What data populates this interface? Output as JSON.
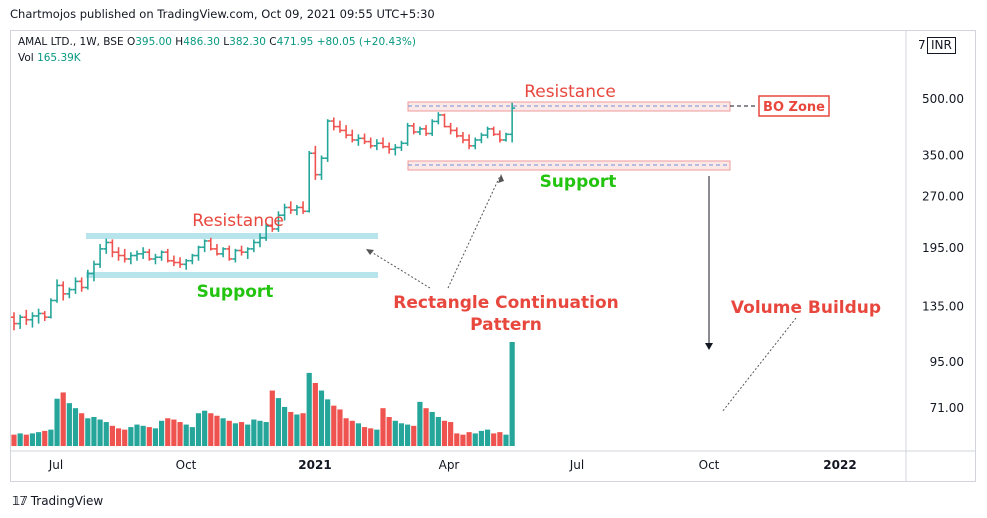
{
  "header": {
    "publisher": "Chartmojos published on TradingView.com, Oct 09, 2021 09:55 UTC+5:30",
    "symbol": "AMAL LTD., 1W, BSE",
    "ohlc": {
      "o_label": "O",
      "o": "395.00",
      "h_label": "H",
      "h": "486.30",
      "l_label": "L",
      "l": "382.30",
      "c_label": "C",
      "c": "471.95",
      "change": "+80.05 (+20.43%)"
    },
    "volume_label": "Vol",
    "volume_value": "165.39K",
    "currency": "INR",
    "top_tick": "7"
  },
  "footer": {
    "brand": "TradingView"
  },
  "colors": {
    "up": "#26a69a",
    "down": "#ef5350",
    "annotation": "#e8473e",
    "support": "#22c40f",
    "band": "#b8e4ec"
  },
  "chart_data": {
    "type": "candlestick",
    "scale": "log",
    "y_ticks": [
      "500.00",
      "350.00",
      "270.00",
      "195.00",
      "135.00",
      "95.00",
      "71.00"
    ],
    "x_ticks": [
      "Jul",
      "Oct",
      "2021",
      "Apr",
      "Jul",
      "Oct",
      "2022"
    ],
    "last_volume": "165.39K",
    "annotations": {
      "resistance_1": "Resistance",
      "support_1": "Support",
      "resistance_2": "Resistance",
      "support_2": "Support",
      "pattern": "Rectangle Continuation\nPattern",
      "bo_zone": "BO Zone",
      "volume_buildup": "Volume Buildup"
    },
    "ohlc": [
      [
        126,
        130,
        116,
        121
      ],
      [
        121,
        128,
        117,
        126
      ],
      [
        126,
        132,
        120,
        124
      ],
      [
        124,
        130,
        118,
        127
      ],
      [
        127,
        133,
        121,
        129
      ],
      [
        129,
        131,
        123,
        126
      ],
      [
        126,
        142,
        125,
        140
      ],
      [
        140,
        160,
        138,
        154
      ],
      [
        154,
        158,
        140,
        146
      ],
      [
        146,
        152,
        142,
        150
      ],
      [
        150,
        162,
        146,
        158
      ],
      [
        158,
        162,
        148,
        152
      ],
      [
        152,
        170,
        150,
        166
      ],
      [
        166,
        180,
        158,
        176
      ],
      [
        176,
        200,
        172,
        194
      ],
      [
        194,
        207,
        188,
        202
      ],
      [
        202,
        206,
        184,
        190
      ],
      [
        190,
        196,
        180,
        186
      ],
      [
        186,
        194,
        178,
        182
      ],
      [
        182,
        190,
        176,
        186
      ],
      [
        186,
        192,
        180,
        188
      ],
      [
        188,
        196,
        182,
        190
      ],
      [
        190,
        194,
        180,
        182
      ],
      [
        182,
        188,
        176,
        184
      ],
      [
        184,
        192,
        180,
        190
      ],
      [
        190,
        194,
        178,
        180
      ],
      [
        180,
        186,
        174,
        178
      ],
      [
        178,
        184,
        172,
        176
      ],
      [
        176,
        182,
        170,
        180
      ],
      [
        180,
        188,
        176,
        186
      ],
      [
        186,
        198,
        180,
        196
      ],
      [
        196,
        206,
        190,
        204
      ],
      [
        204,
        208,
        192,
        194
      ],
      [
        194,
        200,
        186,
        188
      ],
      [
        188,
        196,
        184,
        194
      ],
      [
        194,
        198,
        180,
        182
      ],
      [
        182,
        194,
        178,
        192
      ],
      [
        192,
        198,
        186,
        190
      ],
      [
        190,
        196,
        182,
        194
      ],
      [
        194,
        206,
        190,
        202
      ],
      [
        202,
        214,
        196,
        208
      ],
      [
        208,
        228,
        204,
        224
      ],
      [
        224,
        236,
        216,
        220
      ],
      [
        220,
        246,
        216,
        240
      ],
      [
        240,
        258,
        232,
        252
      ],
      [
        252,
        262,
        242,
        248
      ],
      [
        248,
        256,
        240,
        252
      ],
      [
        252,
        262,
        242,
        246
      ],
      [
        246,
        360,
        244,
        355
      ],
      [
        355,
        372,
        300,
        310
      ],
      [
        310,
        350,
        300,
        344
      ],
      [
        344,
        440,
        336,
        435
      ],
      [
        435,
        445,
        410,
        420
      ],
      [
        420,
        436,
        404,
        410
      ],
      [
        410,
        424,
        390,
        398
      ],
      [
        398,
        412,
        380,
        386
      ],
      [
        386,
        400,
        372,
        390
      ],
      [
        390,
        402,
        376,
        382
      ],
      [
        382,
        392,
        366,
        372
      ],
      [
        372,
        388,
        362,
        378
      ],
      [
        378,
        392,
        366,
        370
      ],
      [
        370,
        380,
        354,
        364
      ],
      [
        364,
        376,
        350,
        368
      ],
      [
        368,
        384,
        360,
        378
      ],
      [
        378,
        430,
        372,
        422
      ],
      [
        422,
        430,
        400,
        406
      ],
      [
        406,
        420,
        398,
        414
      ],
      [
        414,
        424,
        396,
        402
      ],
      [
        402,
        440,
        396,
        434
      ],
      [
        434,
        460,
        426,
        452
      ],
      [
        452,
        456,
        418,
        420
      ],
      [
        420,
        430,
        400,
        410
      ],
      [
        410,
        418,
        392,
        396
      ],
      [
        396,
        406,
        378,
        386
      ],
      [
        386,
        400,
        364,
        372
      ],
      [
        372,
        392,
        364,
        386
      ],
      [
        386,
        404,
        378,
        398
      ],
      [
        398,
        420,
        390,
        414
      ],
      [
        414,
        420,
        396,
        400
      ],
      [
        400,
        410,
        380,
        386
      ],
      [
        386,
        404,
        382,
        400
      ],
      [
        400,
        488,
        380,
        472
      ]
    ],
    "volumes": [
      18,
      20,
      18,
      20,
      22,
      24,
      26,
      75,
      85,
      68,
      60,
      52,
      44,
      46,
      42,
      38,
      32,
      28,
      26,
      30,
      34,
      32,
      30,
      28,
      40,
      44,
      42,
      38,
      34,
      30,
      52,
      56,
      52,
      48,
      44,
      40,
      36,
      38,
      34,
      42,
      40,
      38,
      88,
      76,
      62,
      54,
      50,
      52,
      116,
      100,
      88,
      74,
      64,
      58,
      44,
      40,
      36,
      30,
      28,
      26,
      60,
      46,
      40,
      36,
      34,
      32,
      70,
      60,
      54,
      46,
      40,
      38,
      20,
      18,
      22,
      20,
      24,
      26,
      20,
      22,
      18,
      165
    ]
  }
}
